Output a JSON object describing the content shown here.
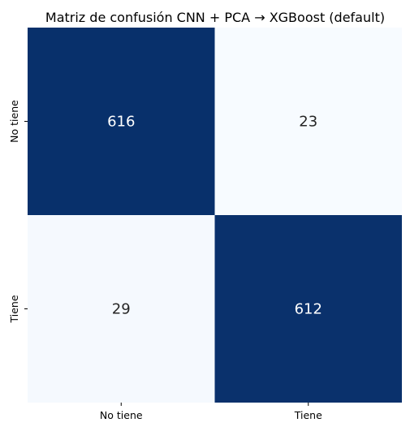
{
  "chart_data": {
    "type": "heatmap",
    "title": "Matriz de confusión CNN + PCA → XGBoost (default)",
    "xlabel": "",
    "ylabel": "",
    "x_categories": [
      "No tiene",
      "Tiene"
    ],
    "y_categories": [
      "No tiene",
      "Tiene"
    ],
    "values": [
      [
        616,
        23
      ],
      [
        29,
        612
      ]
    ],
    "colormap": "Blues",
    "colorbar": false,
    "grid": false,
    "colors": {
      "high": "#08306b",
      "low": "#f7fbff",
      "text_on_dark": "#ffffff",
      "text_on_light": "#262626"
    }
  }
}
